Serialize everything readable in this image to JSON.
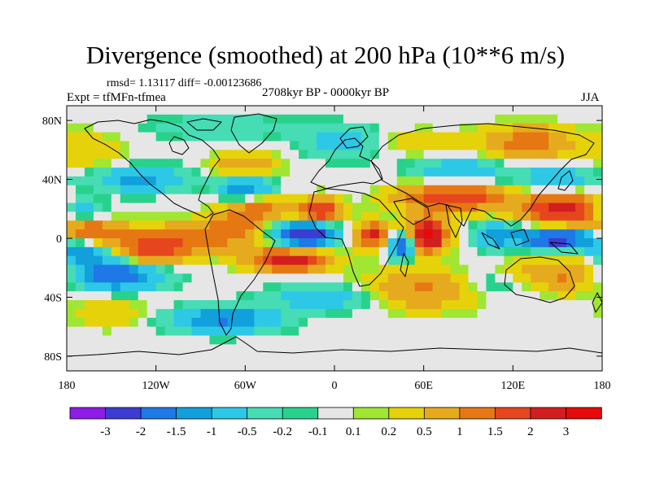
{
  "header": {
    "title": "Divergence (smoothed) at 200 hPa (10**6 m/s)",
    "stats": "rmsd= 1.13117 diff= -0.00123686",
    "experiment": "Expt = tfMFn-tfmea",
    "period": "2708kyr BP - 0000kyr BP",
    "season": "JJA"
  },
  "chart_data": {
    "type": "heatmap",
    "title": "Divergence (smoothed) at 200 hPa (10**6 m/s)",
    "xlabel": "",
    "ylabel": "",
    "xlim": [
      -180,
      180
    ],
    "ylim": [
      -90,
      90
    ],
    "x_ticks": [
      {
        "value": -180,
        "label": "180"
      },
      {
        "value": -120,
        "label": "120W"
      },
      {
        "value": -60,
        "label": "60W"
      },
      {
        "value": 0,
        "label": "0"
      },
      {
        "value": 60,
        "label": "60E"
      },
      {
        "value": 120,
        "label": "120E"
      },
      {
        "value": 180,
        "label": "180"
      }
    ],
    "y_ticks": [
      {
        "value": 80,
        "label": "80N"
      },
      {
        "value": 40,
        "label": "40N"
      },
      {
        "value": 0,
        "label": "0"
      },
      {
        "value": -40,
        "label": "40S"
      },
      {
        "value": -80,
        "label": "80S"
      }
    ],
    "colorbar": {
      "levels": [
        "-3",
        "-2",
        "-1.5",
        "-1",
        "-0.5",
        "-0.2",
        "-0.1",
        "0.1",
        "0.2",
        "0.5",
        "1",
        "1.5",
        "2",
        "3"
      ],
      "colors": [
        "#8c1ce6",
        "#3c3cd2",
        "#1e78e6",
        "#12a0dc",
        "#2dc8e6",
        "#46dcb4",
        "#28d28c",
        "#e6e6e6",
        "#a0e632",
        "#e6d20a",
        "#e6aa1e",
        "#e67814",
        "#e6461e",
        "#d21e1e",
        "#e60a0a"
      ]
    },
    "anomalies": [
      {
        "lon": -20,
        "lat": 3,
        "value": -3.2,
        "sx": 14,
        "sy": 6
      },
      {
        "lon": 46,
        "lat": -5,
        "value": -2.5,
        "sx": 6,
        "sy": 6
      },
      {
        "lon": 150,
        "lat": 0,
        "value": -2.6,
        "sx": 18,
        "sy": 5
      },
      {
        "lon": 108,
        "lat": 2,
        "value": -1.3,
        "sx": 10,
        "sy": 6
      },
      {
        "lon": -150,
        "lat": -25,
        "value": -2.2,
        "sx": 22,
        "sy": 7
      },
      {
        "lon": -170,
        "lat": -10,
        "value": -1.5,
        "sx": 12,
        "sy": 5
      },
      {
        "lon": -75,
        "lat": -55,
        "value": -1.6,
        "sx": 25,
        "sy": 6
      },
      {
        "lon": -5,
        "lat": -40,
        "value": -1.0,
        "sx": 25,
        "sy": 6
      },
      {
        "lon": -130,
        "lat": 40,
        "value": -1.2,
        "sx": 22,
        "sy": 6
      },
      {
        "lon": -60,
        "lat": 35,
        "value": -1.5,
        "sx": 12,
        "sy": 6
      },
      {
        "lon": -175,
        "lat": 20,
        "value": -1.2,
        "sx": 12,
        "sy": 6
      },
      {
        "lon": 10,
        "lat": 65,
        "value": -1.1,
        "sx": 20,
        "sy": 7
      },
      {
        "lon": 85,
        "lat": 45,
        "value": -1.0,
        "sx": 22,
        "sy": 6
      },
      {
        "lon": 150,
        "lat": 40,
        "value": -1.0,
        "sx": 18,
        "sy": 7
      },
      {
        "lon": 110,
        "lat": -30,
        "value": -0.8,
        "sx": 20,
        "sy": 8
      },
      {
        "lon": -75,
        "lat": 75,
        "value": -0.4,
        "sx": 40,
        "sy": 6
      },
      {
        "lon": -100,
        "lat": 0,
        "value": 1.2,
        "sx": 40,
        "sy": 7
      },
      {
        "lon": -30,
        "lat": -15,
        "value": 2.6,
        "sx": 18,
        "sy": 5
      },
      {
        "lon": 62,
        "lat": 2,
        "value": 3.3,
        "sx": 9,
        "sy": 8
      },
      {
        "lon": 25,
        "lat": 2,
        "value": 2.2,
        "sx": 8,
        "sy": 6
      },
      {
        "lon": -10,
        "lat": 18,
        "value": 2.2,
        "sx": 10,
        "sy": 6
      },
      {
        "lon": -120,
        "lat": -10,
        "value": 1.6,
        "sx": 15,
        "sy": 6
      },
      {
        "lon": 80,
        "lat": 28,
        "value": 2.0,
        "sx": 25,
        "sy": 7
      },
      {
        "lon": 155,
        "lat": 20,
        "value": 2.4,
        "sx": 20,
        "sy": 8
      },
      {
        "lon": 150,
        "lat": -25,
        "value": 1.2,
        "sx": 30,
        "sy": 8
      },
      {
        "lon": 60,
        "lat": -35,
        "value": 1.1,
        "sx": 30,
        "sy": 9
      },
      {
        "lon": -165,
        "lat": 5,
        "value": 1.3,
        "sx": 15,
        "sy": 5
      },
      {
        "lon": -50,
        "lat": 20,
        "value": 1.3,
        "sx": 15,
        "sy": 6
      },
      {
        "lon": -70,
        "lat": 10,
        "value": 1.0,
        "sx": 12,
        "sy": 6
      },
      {
        "lon": 130,
        "lat": 65,
        "value": 1.3,
        "sx": 20,
        "sy": 8
      },
      {
        "lon": -60,
        "lat": 50,
        "value": 1.0,
        "sx": 15,
        "sy": 6
      },
      {
        "lon": 40,
        "lat": 65,
        "value": 0.6,
        "sx": 30,
        "sy": 6
      },
      {
        "lon": -170,
        "lat": 60,
        "value": 0.5,
        "sx": 20,
        "sy": 10
      },
      {
        "lon": -150,
        "lat": -50,
        "value": 0.4,
        "sx": 20,
        "sy": 8
      }
    ]
  }
}
